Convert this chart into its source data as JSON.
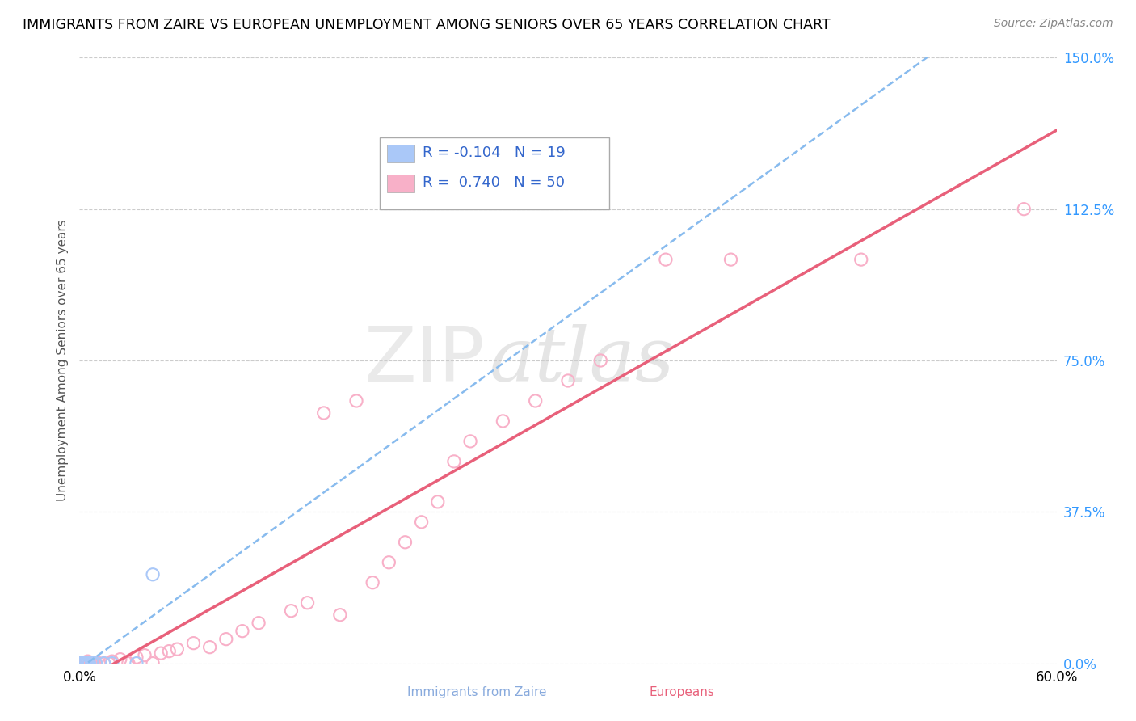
{
  "title": "IMMIGRANTS FROM ZAIRE VS EUROPEAN UNEMPLOYMENT AMONG SENIORS OVER 65 YEARS CORRELATION CHART",
  "source": "Source: ZipAtlas.com",
  "ylabel": "Unemployment Among Seniors over 65 years",
  "watermark_top": "ZIP",
  "watermark_bot": "atlas",
  "series1_label": "Immigrants from Zaire",
  "series1_R": "-0.104",
  "series1_N": "19",
  "series1_color": "#aac8f8",
  "series1_line_color": "#88bbee",
  "series2_label": "Europeans",
  "series2_R": "0.740",
  "series2_N": "50",
  "series2_color": "#f8b0c8",
  "series2_line_color": "#e8607a",
  "ytick_labels": [
    "0.0%",
    "37.5%",
    "75.0%",
    "112.5%",
    "150.0%"
  ],
  "ytick_values": [
    0,
    37.5,
    75.0,
    112.5,
    150.0
  ],
  "xlim": [
    0,
    60
  ],
  "ylim": [
    0,
    150
  ],
  "zaire_x": [
    0.0,
    0.05,
    0.08,
    0.1,
    0.12,
    0.15,
    0.18,
    0.2,
    0.25,
    0.3,
    0.4,
    0.5,
    0.6,
    0.8,
    1.0,
    1.5,
    2.0,
    3.5,
    4.5
  ],
  "zaire_y": [
    0.0,
    0.0,
    0.0,
    0.0,
    0.0,
    0.0,
    0.0,
    0.0,
    0.0,
    0.0,
    0.0,
    0.0,
    0.0,
    0.0,
    0.0,
    0.0,
    0.0,
    0.0,
    22.0
  ],
  "european_x": [
    0.1,
    0.15,
    0.2,
    0.25,
    0.3,
    0.35,
    0.4,
    0.5,
    0.6,
    0.7,
    0.8,
    0.9,
    1.0,
    1.2,
    1.5,
    1.8,
    2.0,
    2.5,
    3.0,
    3.5,
    4.0,
    4.5,
    5.0,
    5.5,
    6.0,
    7.0,
    8.0,
    9.0,
    10.0,
    11.0,
    13.0,
    14.0,
    15.0,
    16.0,
    17.0,
    18.0,
    19.0,
    20.0,
    21.0,
    22.0,
    23.0,
    24.0,
    26.0,
    28.0,
    30.0,
    32.0,
    36.0,
    40.0,
    48.0,
    58.0
  ],
  "european_y": [
    0.0,
    0.0,
    0.0,
    0.0,
    0.0,
    0.0,
    0.0,
    0.5,
    0.0,
    0.0,
    0.0,
    0.0,
    0.0,
    0.0,
    0.0,
    0.0,
    0.5,
    1.0,
    0.0,
    1.5,
    2.0,
    0.0,
    2.5,
    3.0,
    3.5,
    5.0,
    4.0,
    6.0,
    8.0,
    10.0,
    13.0,
    15.0,
    62.0,
    12.0,
    65.0,
    20.0,
    25.0,
    30.0,
    35.0,
    40.0,
    50.0,
    55.0,
    60.0,
    65.0,
    70.0,
    75.0,
    100.0,
    100.0,
    100.0,
    112.5
  ]
}
